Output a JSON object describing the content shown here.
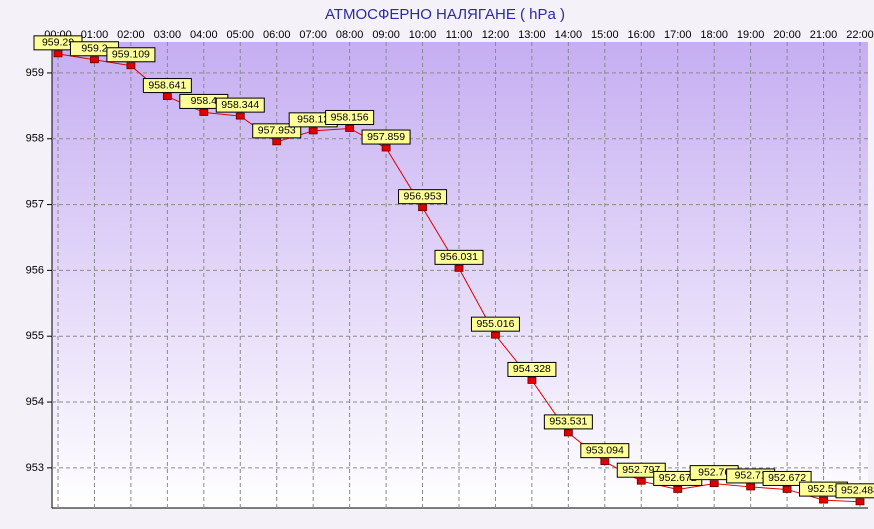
{
  "chart_data": {
    "type": "line",
    "title": "АТМОСФЕРНО НАЛЯГАНЕ  ( hPa )",
    "categories": [
      "00:00",
      "01:00",
      "02:00",
      "03:00",
      "04:00",
      "05:00",
      "06:00",
      "07:00",
      "08:00",
      "09:00",
      "10:00",
      "11:00",
      "12:00",
      "13:00",
      "14:00",
      "15:00",
      "16:00",
      "17:00",
      "18:00",
      "19:00",
      "20:00",
      "21:00",
      "22:00"
    ],
    "series": [
      {
        "color": "#e00000",
        "values": [
          959.29,
          959.2,
          959.109,
          958.641,
          958.4,
          958.344,
          957.953,
          958.12,
          958.156,
          957.859,
          956.953,
          956.031,
          955.016,
          954.328,
          953.531,
          953.094,
          952.797,
          952.672,
          952.76,
          952.71,
          952.672,
          952.51,
          952.484
        ]
      }
    ],
    "ylim": [
      952.39,
      959.47
    ],
    "yticks": [
      953,
      954,
      955,
      956,
      957,
      958,
      959
    ],
    "grid": true
  }
}
